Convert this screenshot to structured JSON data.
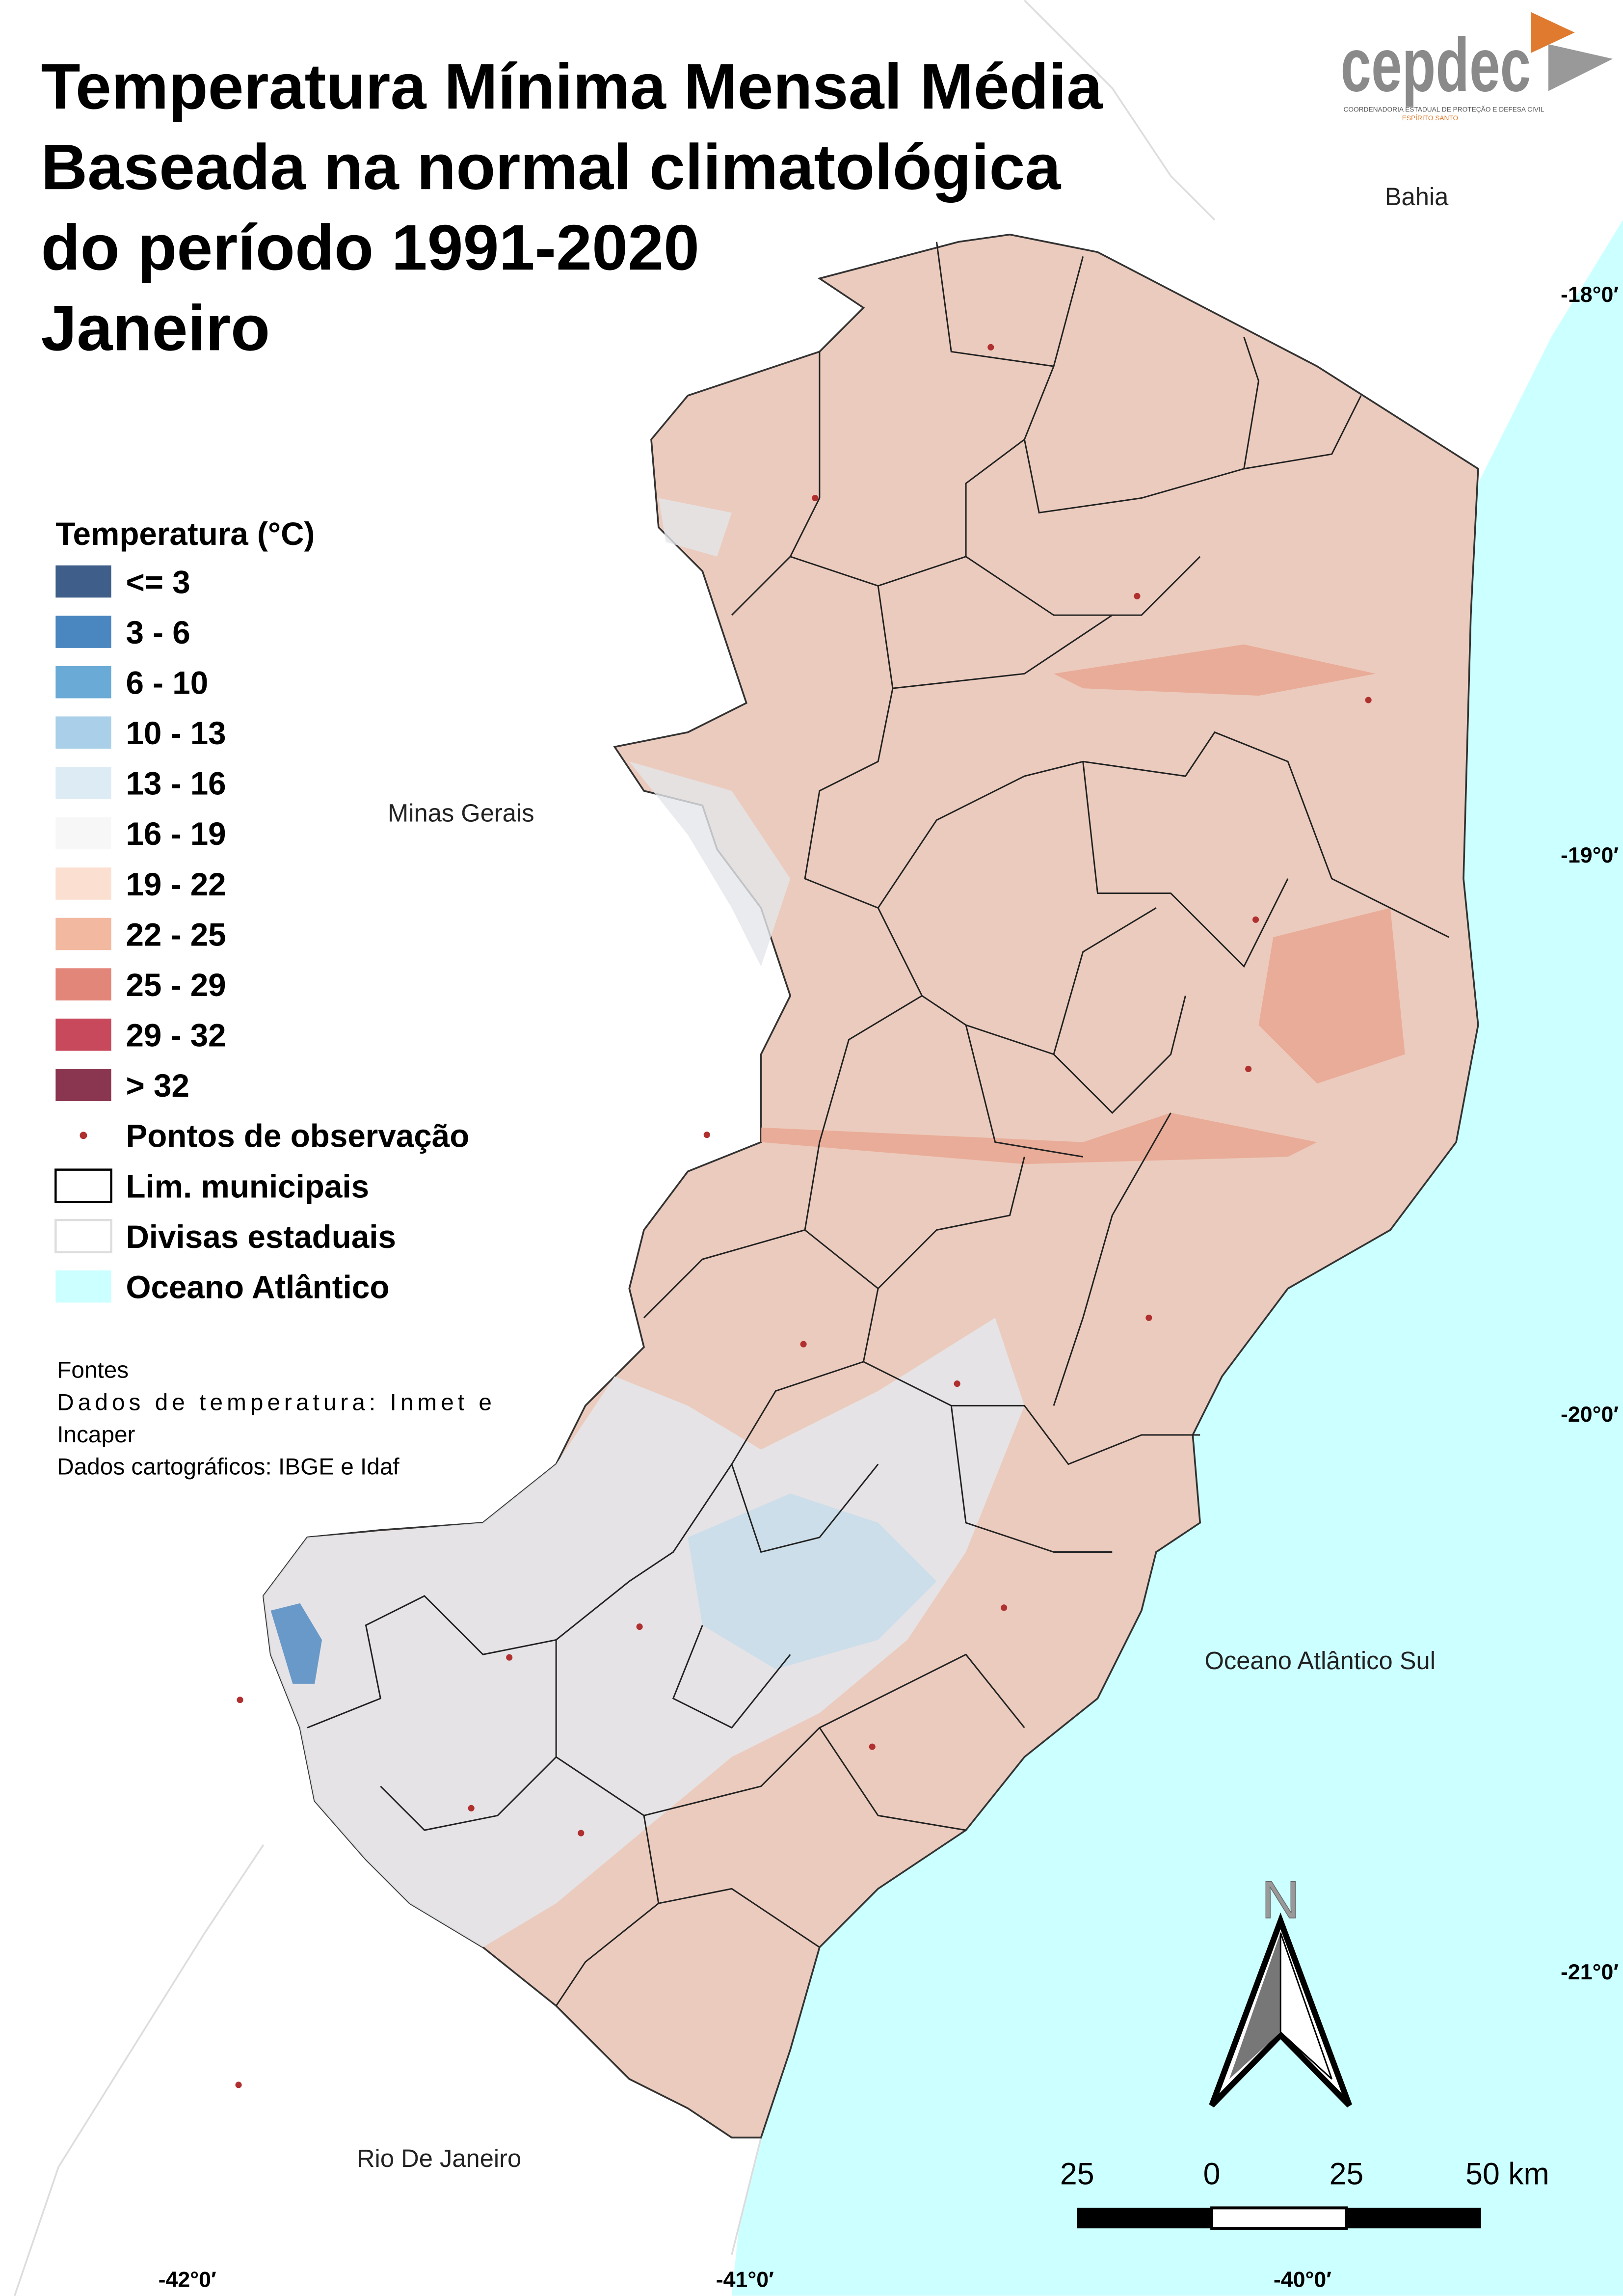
{
  "header": {
    "title_lines": [
      "Temperatura Mínima Mensal Média",
      "Baseada na normal climatológica",
      "do período 1991-2020",
      "Janeiro"
    ]
  },
  "logo": {
    "name": "cepdec",
    "subtitle": "COORDENADORIA ESTADUAL DE PROTEÇÃO E DEFESA CIVIL",
    "state": "ESPÍRITO SANTO"
  },
  "legend": {
    "title": "Temperatura (°C)",
    "items": [
      {
        "label": "<= 3",
        "color": "#3f5f8a",
        "symbol": "fill"
      },
      {
        "label": "3 - 6",
        "color": "#4a86c0",
        "symbol": "fill"
      },
      {
        "label": "6 - 10",
        "color": "#6aaad6",
        "symbol": "fill"
      },
      {
        "label": "10 - 13",
        "color": "#a9d0e8",
        "symbol": "fill"
      },
      {
        "label": "13 - 16",
        "color": "#dcebf4",
        "symbol": "fill"
      },
      {
        "label": "16 - 19",
        "color": "#f7f7f7",
        "symbol": "fill"
      },
      {
        "label": "19 - 22",
        "color": "#fbe0d2",
        "symbol": "fill"
      },
      {
        "label": "22 - 25",
        "color": "#f3b8a0",
        "symbol": "fill"
      },
      {
        "label": "25 - 29",
        "color": "#e3867a",
        "symbol": "fill"
      },
      {
        "label": "29 - 32",
        "color": "#c8485c",
        "symbol": "fill"
      },
      {
        "label": "> 32",
        "color": "#8a3650",
        "symbol": "fill"
      },
      {
        "label": "Pontos de observação",
        "color": "#b03030",
        "symbol": "point"
      },
      {
        "label": "Lim. municipais",
        "color": "#000000",
        "symbol": "outline"
      },
      {
        "label": "Divisas estaduais",
        "color": "#dddddd",
        "symbol": "outline"
      },
      {
        "label": "Oceano Atlântico",
        "color": "#ccffff",
        "symbol": "fill"
      }
    ]
  },
  "sources": {
    "heading": "Fontes",
    "lines": [
      "Dados de temperatura: Inmet e",
      "Incaper",
      "Dados cartográficos: IBGE e Idaf"
    ]
  },
  "place_labels": {
    "bahia": "Bahia",
    "minas": "Minas Gerais",
    "ocean": "Oceano Atlântico Sul",
    "rio": "Rio De Janeiro"
  },
  "latitude_labels": [
    "-18°0′",
    "-19°0′",
    "-20°0′",
    "-21°0′"
  ],
  "longitude_labels": [
    "-42°0′",
    "-41°0′",
    "-40°0′"
  ],
  "north": "N",
  "scale_bar": {
    "labels": [
      "25",
      "0",
      "25",
      "50 km"
    ]
  }
}
